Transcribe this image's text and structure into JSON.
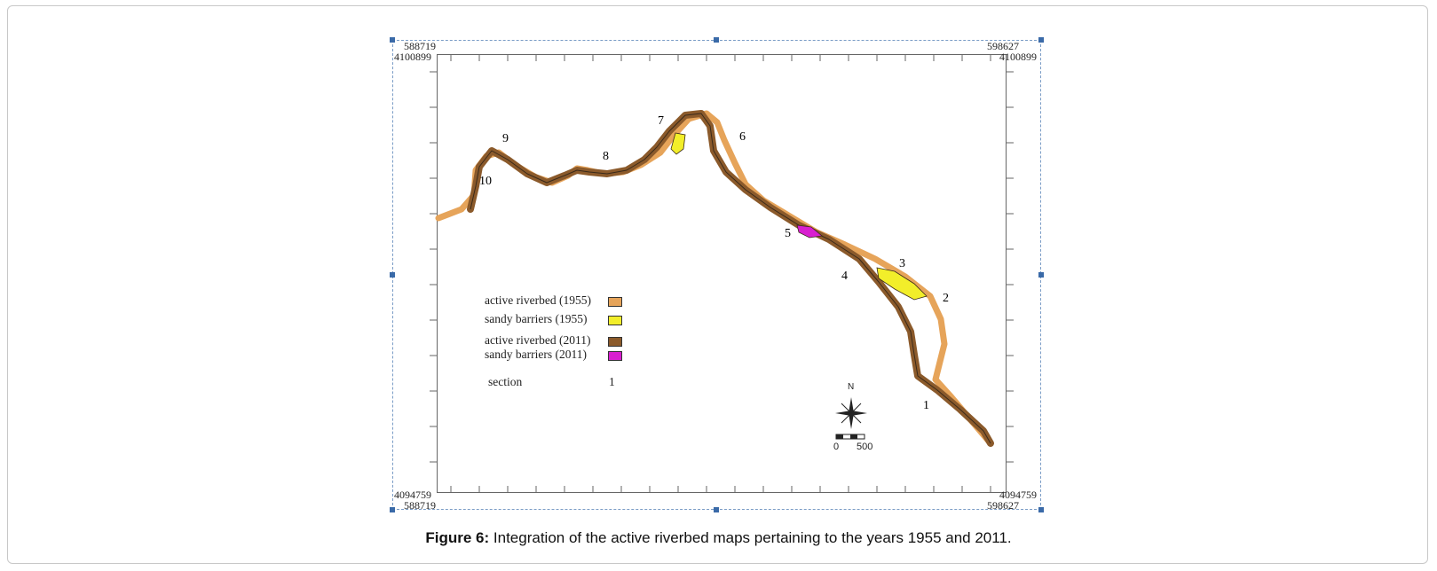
{
  "map": {
    "coords": {
      "top_left_x": "588719",
      "top_left_y": "4100899",
      "top_right_x": "598627",
      "top_right_y": "4100899",
      "bottom_left_y": "4094759",
      "bottom_left_x": "588719",
      "bottom_right_y": "4094759",
      "bottom_right_x": "598627"
    },
    "section_numbers": [
      "1",
      "2",
      "3",
      "4",
      "5",
      "6",
      "7",
      "8",
      "9",
      "10"
    ],
    "colors": {
      "riverbed_1955": "#e6a45a",
      "sandy_1955": "#f2ee2a",
      "riverbed_2011": "#8b5a2b",
      "sandy_2011": "#d81fd0",
      "outline": "#3a2a1a"
    },
    "north_label": "N",
    "scale": {
      "min": "0",
      "max": "500"
    }
  },
  "legend": {
    "items": [
      {
        "label": "active riverbed (1955)",
        "color": "#e6a45a"
      },
      {
        "label": "sandy barriers (1955)",
        "color": "#f2ee2a"
      },
      {
        "label": "active riverbed (2011)",
        "color": "#8b5a2b"
      },
      {
        "label": "sandy barriers (2011)",
        "color": "#d81fd0"
      }
    ],
    "section_label": "section",
    "section_value": "1"
  },
  "caption": {
    "label": "Figure 6:",
    "text": " Integration of the active riverbed maps pertaining to the years 1955 and 2011."
  }
}
